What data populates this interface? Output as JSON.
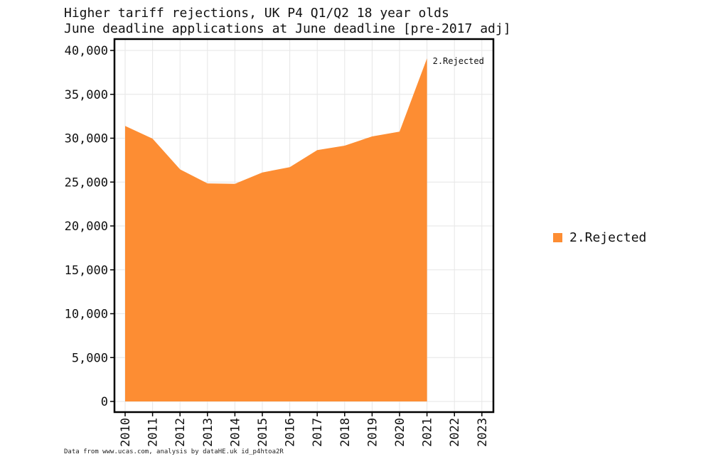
{
  "chart_data": {
    "type": "area",
    "title": "Higher tariff rejections, UK P4 Q1/Q2 18 year olds",
    "subtitle": "June deadline applications at June deadline [pre-2017 adj]",
    "xlabel": "",
    "ylabel": "",
    "categories": [
      "2010",
      "2011",
      "2012",
      "2013",
      "2014",
      "2015",
      "2016",
      "2017",
      "2018",
      "2019",
      "2020",
      "2021",
      "2022",
      "2023"
    ],
    "series": [
      {
        "name": "2.Rejected",
        "color": "#fd8d33",
        "values": [
          31400,
          29950,
          26450,
          24850,
          24800,
          26100,
          26700,
          28650,
          29150,
          30200,
          30750,
          39100,
          null,
          null
        ]
      }
    ],
    "ylim": [
      0,
      40000
    ],
    "yticks": [
      0,
      5000,
      10000,
      15000,
      20000,
      25000,
      30000,
      35000,
      40000
    ],
    "ytick_labels": [
      "0",
      "5,000",
      "10,000",
      "15,000",
      "20,000",
      "25,000",
      "30,000",
      "35,000",
      "40,000"
    ],
    "grid": true,
    "legend_position": "right",
    "end_label": "2.Rejected",
    "source_note": "Data from www.ucas.com, analysis by dataHE.uk id_p4htoa2R"
  }
}
